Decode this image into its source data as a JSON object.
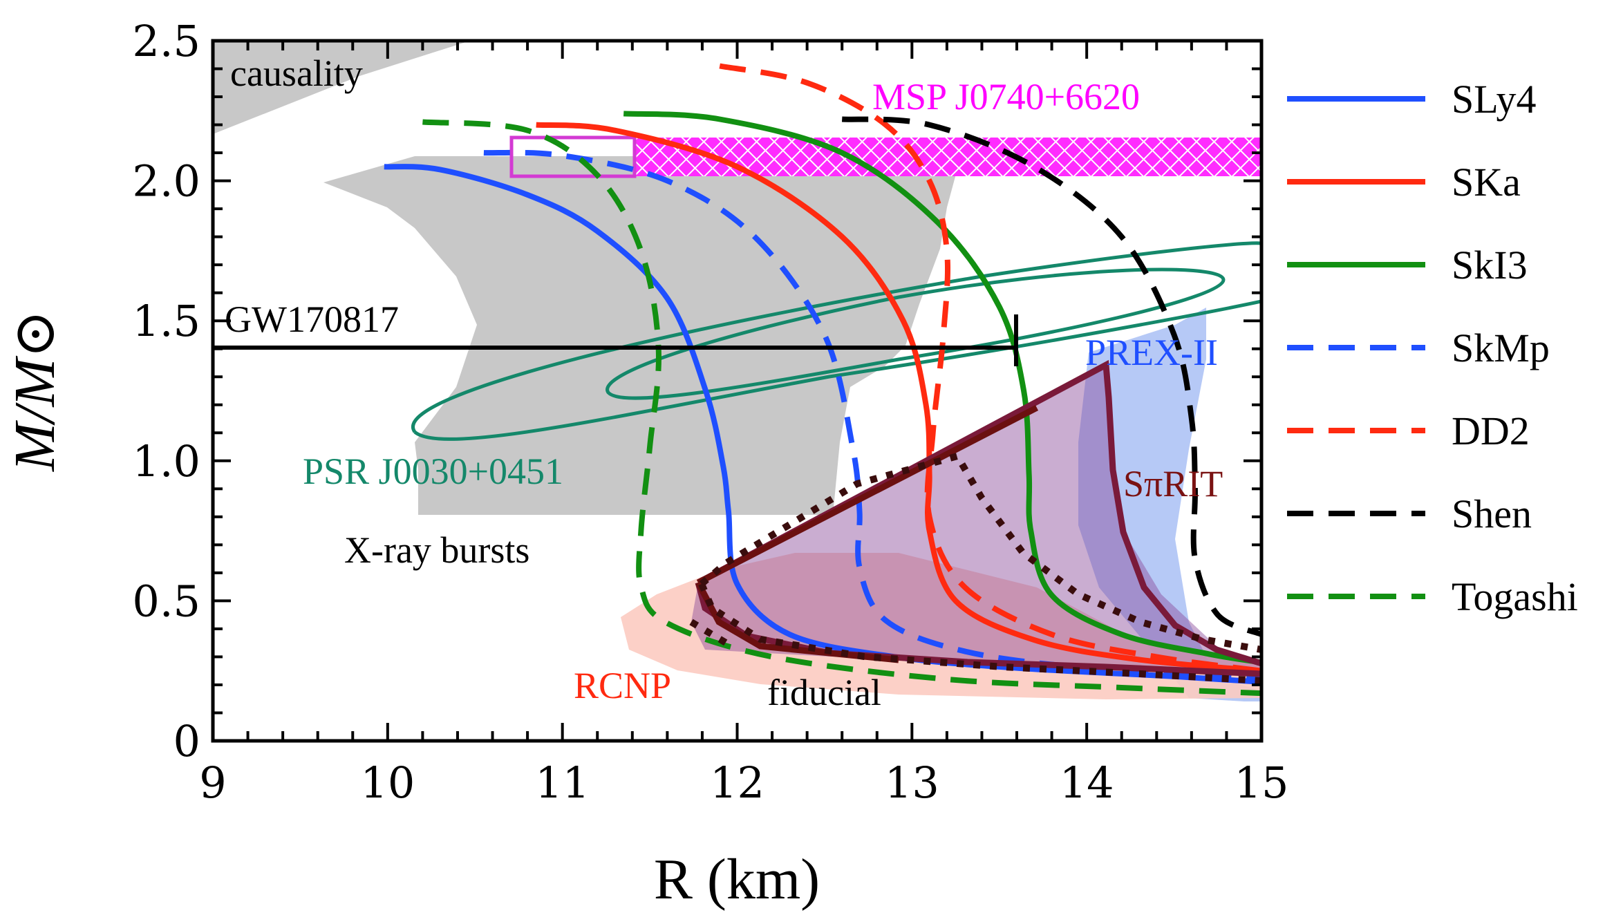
{
  "chart_data": {
    "type": "line",
    "title": "",
    "xlabel": "R (km)",
    "ylabel": "M/M⊙",
    "xlim": [
      9,
      15
    ],
    "ylim": [
      0,
      2.5
    ],
    "xticks": [
      9,
      10,
      11,
      12,
      13,
      14,
      15
    ],
    "yticks": [
      0,
      0.5,
      1.0,
      1.5,
      2.0,
      2.5
    ],
    "xtick_labels": [
      "9",
      "10",
      "11",
      "12",
      "13",
      "14",
      "15"
    ],
    "ytick_labels": [
      "0",
      "0.5",
      "1.0",
      "1.5",
      "2.0",
      "2.5"
    ],
    "legend_position": "right",
    "series": [
      {
        "name": "SLy4",
        "color": "#1f4fff",
        "dash": "solid",
        "x": [
          9.98,
          10.3,
          10.8,
          11.2,
          11.6,
          11.82,
          11.92,
          11.95,
          12.0,
          12.3,
          12.9,
          13.6,
          14.5,
          15.0
        ],
        "y": [
          2.05,
          2.04,
          1.95,
          1.82,
          1.58,
          1.25,
          0.98,
          0.82,
          0.56,
          0.38,
          0.3,
          0.26,
          0.23,
          0.21
        ]
      },
      {
        "name": "SKa",
        "color": "#ff2a10",
        "dash": "solid",
        "x": [
          10.85,
          11.3,
          12.0,
          12.6,
          12.95,
          13.08,
          13.1,
          13.1,
          13.25,
          13.7,
          14.3,
          15.0
        ],
        "y": [
          2.2,
          2.18,
          2.05,
          1.8,
          1.5,
          1.2,
          0.95,
          0.75,
          0.5,
          0.36,
          0.29,
          0.25
        ]
      },
      {
        "name": "SkI3",
        "color": "#129012",
        "dash": "solid",
        "x": [
          11.35,
          11.9,
          12.6,
          13.15,
          13.5,
          13.64,
          13.67,
          13.68,
          13.8,
          14.2,
          14.7,
          15.0
        ],
        "y": [
          2.24,
          2.22,
          2.1,
          1.85,
          1.55,
          1.25,
          0.95,
          0.75,
          0.52,
          0.38,
          0.31,
          0.28
        ]
      },
      {
        "name": "SkMp",
        "color": "#1f4fff",
        "dash": "dashed",
        "x": [
          10.55,
          11.0,
          11.6,
          12.1,
          12.5,
          12.66,
          12.7,
          12.7,
          12.85,
          13.3,
          14.0,
          15.0
        ],
        "y": [
          2.1,
          2.09,
          2.0,
          1.8,
          1.45,
          1.05,
          0.82,
          0.62,
          0.43,
          0.32,
          0.26,
          0.22
        ]
      },
      {
        "name": "DD2",
        "color": "#ff2a10",
        "dash": "dashed",
        "x": [
          11.9,
          12.4,
          12.85,
          13.1,
          13.2,
          13.18,
          13.12,
          13.1,
          13.3,
          13.8,
          14.4,
          15.0
        ],
        "y": [
          2.41,
          2.35,
          2.2,
          2.0,
          1.75,
          1.45,
          1.1,
          0.8,
          0.55,
          0.38,
          0.3,
          0.25
        ]
      },
      {
        "name": "Shen",
        "color": "#000000",
        "dash": "dashed",
        "x": [
          12.6,
          13.1,
          13.7,
          14.2,
          14.5,
          14.6,
          14.62,
          14.62,
          14.75,
          15.0
        ],
        "y": [
          2.22,
          2.2,
          2.05,
          1.8,
          1.45,
          1.15,
          0.9,
          0.65,
          0.45,
          0.38
        ]
      },
      {
        "name": "Togashi",
        "color": "#129012",
        "dash": "dashed",
        "x": [
          10.2,
          10.8,
          11.2,
          11.45,
          11.55,
          11.5,
          11.45,
          11.45,
          11.6,
          12.2,
          13.2,
          14.2,
          15.0
        ],
        "y": [
          2.21,
          2.18,
          2.02,
          1.75,
          1.4,
          1.05,
          0.75,
          0.55,
          0.42,
          0.3,
          0.22,
          0.19,
          0.17
        ]
      }
    ],
    "constraints": [
      {
        "name": "GW170817",
        "type": "horizontal bar",
        "x": [
          9.0,
          13.6
        ],
        "y": 1.4,
        "color": "#000000"
      },
      {
        "name": "MSP J0740+6620",
        "type": "band",
        "y": [
          2.01,
          2.15
        ],
        "color": "#ff00ff"
      },
      {
        "name": "PSR J0030+0451",
        "type": "contour",
        "color": "#14886a"
      },
      {
        "name": "X-ray bursts",
        "type": "region",
        "color": "#c8c8c8"
      },
      {
        "name": "causality",
        "type": "region",
        "color": "#c8c8c8"
      },
      {
        "name": "PREX-II",
        "type": "region",
        "color": "#a9bff5"
      },
      {
        "name": "RCNP",
        "type": "region",
        "color": "#fccbc1"
      },
      {
        "name": "SπRIT",
        "type": "region",
        "color": "#8a2a2a"
      },
      {
        "name": "fiducial",
        "type": "dotted boundary",
        "color": "#3a0d0d"
      }
    ],
    "annotations": [
      "causality",
      "MSP J0740+6620",
      "GW170817",
      "PREX-II",
      "PSR J0030+0451",
      "SπRIT",
      "X-ray bursts",
      "RCNP",
      "fiducial"
    ]
  },
  "labels": {
    "causality": "causality",
    "msp": "MSP J0740+6620",
    "gw": "GW170817",
    "prex": "PREX-II",
    "psr": "PSR J0030+0451",
    "spirit": "SπRIT",
    "xray": "X-ray bursts",
    "rcnp": "RCNP",
    "fiducial": "fiducial"
  },
  "colors": {
    "annot_black": "#000000",
    "annot_magenta": "#ff00ff",
    "annot_green": "#14886a",
    "annot_blue": "#1f4fff",
    "annot_darkred": "#7a1212",
    "annot_red": "#ff2a10"
  }
}
